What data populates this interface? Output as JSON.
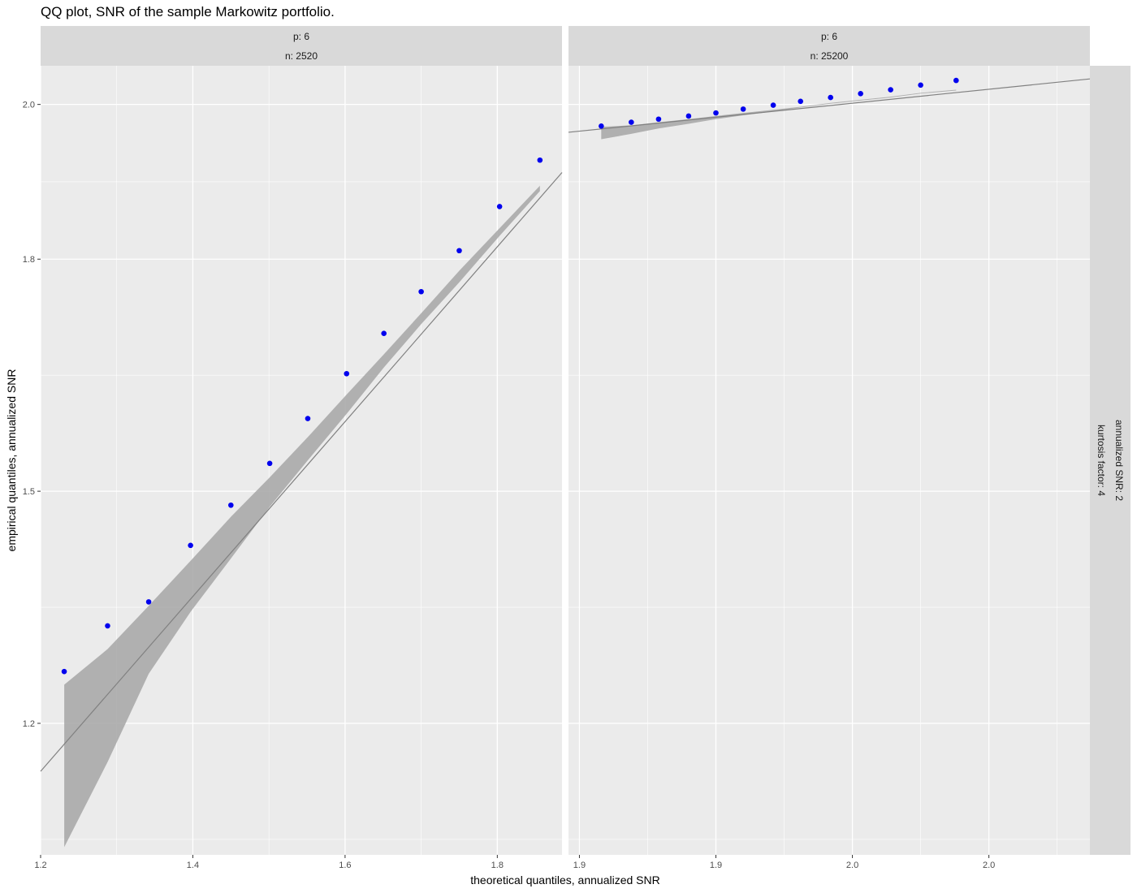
{
  "chart_data": {
    "type": "scatter",
    "title": "QQ plot, SNR of the sample Markowitz portfolio.",
    "xlabel": "theoretical quantiles, annualized SNR",
    "ylabel": "empirical quantiles, annualized SNR",
    "ylim": [
      1.03,
      2.05
    ],
    "y_ticks": [
      1.2,
      1.5,
      1.8,
      2.0
    ],
    "y_tick_labels": [
      "1.2",
      "1.5",
      "1.8",
      "2.0"
    ],
    "grid": true,
    "row_strip": [
      "annualized SNR: 2",
      "kurtosis factor: 4"
    ],
    "colors": {
      "points": "#0000ee",
      "fit_line": "#808080",
      "band": "#a6a6a6",
      "panel_bg": "#ebebeb",
      "strip_bg": "#d9d9d9",
      "grid": "#ffffff"
    },
    "panels": [
      {
        "strip": [
          "p: 6",
          "n: 2520"
        ],
        "xlim": [
          1.2,
          1.885
        ],
        "x_ticks": [
          1.2,
          1.4,
          1.6,
          1.8
        ],
        "x_tick_labels": [
          "1.2",
          "1.4",
          "1.6",
          "1.8"
        ],
        "points": {
          "x": [
            1.231,
            1.288,
            1.342,
            1.397,
            1.45,
            1.501,
            1.551,
            1.602,
            1.651,
            1.7,
            1.75,
            1.803,
            1.856
          ],
          "y": [
            1.267,
            1.326,
            1.357,
            1.43,
            1.482,
            1.536,
            1.594,
            1.652,
            1.704,
            1.758,
            1.811,
            1.868,
            1.928
          ]
        },
        "fit_line": {
          "x": [
            1.2,
            1.885
          ],
          "y": [
            1.138,
            1.912
          ]
        },
        "band": {
          "x": [
            1.231,
            1.288,
            1.342,
            1.397,
            1.45,
            1.501,
            1.551,
            1.602,
            1.651,
            1.7,
            1.75,
            1.803,
            1.856
          ],
          "upper": [
            1.25,
            1.296,
            1.352,
            1.41,
            1.467,
            1.518,
            1.57,
            1.625,
            1.677,
            1.73,
            1.785,
            1.84,
            1.895
          ],
          "lower": [
            1.04,
            1.15,
            1.264,
            1.344,
            1.413,
            1.48,
            1.54,
            1.6,
            1.66,
            1.716,
            1.77,
            1.83,
            1.888
          ]
        }
      },
      {
        "strip": [
          "p: 6",
          "n: 25200"
        ],
        "xlim": [
          1.862,
          2.053
        ],
        "x_ticks": [
          1.866,
          1.916,
          1.966,
          2.016
        ],
        "x_tick_labels": [
          "1.9",
          "1.9",
          "2.0",
          "2.0"
        ],
        "points": {
          "x": [
            1.874,
            1.885,
            1.895,
            1.906,
            1.916,
            1.926,
            1.937,
            1.947,
            1.958,
            1.969,
            1.98,
            1.991,
            2.004
          ],
          "y": [
            1.972,
            1.977,
            1.981,
            1.985,
            1.989,
            1.994,
            1.999,
            2.004,
            2.009,
            2.014,
            2.019,
            2.025,
            2.031
          ]
        },
        "fit_line": {
          "x": [
            1.862,
            2.053
          ],
          "y": [
            1.964,
            2.033
          ]
        },
        "band": {
          "x": [
            1.874,
            1.885,
            1.895,
            1.906,
            1.916,
            1.926,
            1.937,
            1.947,
            1.958,
            1.969,
            1.98,
            1.991,
            2.004
          ],
          "upper": [
            1.971,
            1.973,
            1.977,
            1.981,
            1.985,
            1.989,
            1.993,
            1.997,
            2.002,
            2.006,
            2.01,
            2.015,
            2.019
          ],
          "lower": [
            1.955,
            1.962,
            1.969,
            1.975,
            1.981,
            1.986,
            1.991,
            1.996,
            2.001,
            2.005,
            2.009,
            2.014,
            2.018
          ]
        }
      }
    ]
  }
}
